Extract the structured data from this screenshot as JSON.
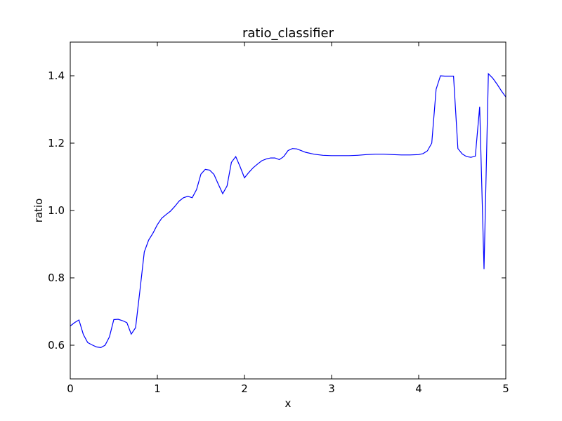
{
  "chart_data": {
    "type": "line",
    "title": "ratio_classifier",
    "xlabel": "x",
    "ylabel": "ratio",
    "xlim": [
      0,
      5
    ],
    "ylim": [
      0.5,
      1.5
    ],
    "xticks": [
      0,
      1,
      2,
      3,
      4,
      5
    ],
    "xtick_labels": [
      "0",
      "1",
      "2",
      "3",
      "4",
      "5"
    ],
    "yticks": [
      0.6,
      0.8,
      1.0,
      1.2,
      1.4
    ],
    "ytick_labels": [
      "0.6",
      "0.8",
      "1.0",
      "1.2",
      "1.4"
    ],
    "grid": false,
    "series": [
      {
        "color": "#0000ff",
        "x": [
          0.0,
          0.05,
          0.1,
          0.15,
          0.2,
          0.25,
          0.3,
          0.35,
          0.4,
          0.45,
          0.5,
          0.55,
          0.6,
          0.65,
          0.7,
          0.75,
          0.8,
          0.85,
          0.9,
          0.95,
          1.0,
          1.05,
          1.1,
          1.15,
          1.2,
          1.25,
          1.3,
          1.35,
          1.4,
          1.45,
          1.5,
          1.55,
          1.6,
          1.65,
          1.7,
          1.75,
          1.8,
          1.85,
          1.9,
          1.95,
          2.0,
          2.05,
          2.1,
          2.15,
          2.2,
          2.25,
          2.3,
          2.35,
          2.4,
          2.45,
          2.5,
          2.55,
          2.6,
          2.65,
          2.7,
          2.8,
          2.9,
          3.0,
          3.1,
          3.2,
          3.3,
          3.4,
          3.5,
          3.6,
          3.7,
          3.8,
          3.9,
          4.0,
          4.05,
          4.1,
          4.15,
          4.2,
          4.25,
          4.3,
          4.35,
          4.4,
          4.45,
          4.5,
          4.55,
          4.6,
          4.65,
          4.7,
          4.75,
          4.8,
          4.85,
          4.9,
          4.95,
          5.0
        ],
        "y": [
          0.657,
          0.667,
          0.675,
          0.632,
          0.608,
          0.601,
          0.595,
          0.593,
          0.6,
          0.625,
          0.676,
          0.677,
          0.673,
          0.667,
          0.633,
          0.652,
          0.763,
          0.877,
          0.912,
          0.933,
          0.958,
          0.977,
          0.988,
          0.998,
          1.012,
          1.028,
          1.038,
          1.042,
          1.038,
          1.062,
          1.108,
          1.122,
          1.12,
          1.107,
          1.078,
          1.05,
          1.073,
          1.143,
          1.16,
          1.13,
          1.097,
          1.113,
          1.127,
          1.138,
          1.148,
          1.153,
          1.156,
          1.156,
          1.151,
          1.16,
          1.178,
          1.184,
          1.183,
          1.178,
          1.173,
          1.167,
          1.164,
          1.163,
          1.163,
          1.163,
          1.164,
          1.166,
          1.167,
          1.167,
          1.166,
          1.165,
          1.165,
          1.166,
          1.169,
          1.177,
          1.2,
          1.36,
          1.4,
          1.399,
          1.399,
          1.399,
          1.184,
          1.168,
          1.16,
          1.158,
          1.161,
          1.308,
          0.826,
          1.406,
          1.393,
          1.375,
          1.355,
          1.337
        ]
      }
    ]
  }
}
